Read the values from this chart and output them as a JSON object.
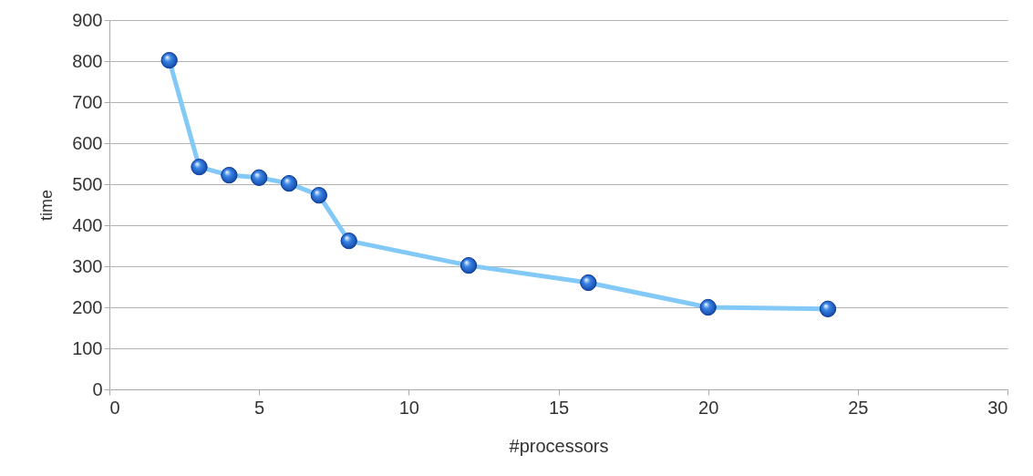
{
  "chart_data": {
    "type": "line",
    "xlabel": "#processors",
    "ylabel": "time",
    "x": [
      2,
      3,
      4,
      5,
      6,
      7,
      8,
      12,
      16,
      20,
      24
    ],
    "series": [
      {
        "color": "#83c9f7",
        "values": [
          802,
          542,
          522,
          516,
          502,
          473,
          362,
          302,
          260,
          200,
          196
        ]
      }
    ],
    "xlim": [
      0,
      30
    ],
    "xticks": [
      0,
      5,
      10,
      15,
      20,
      25,
      30
    ],
    "ylim": [
      0,
      900
    ],
    "yticks": [
      0,
      100,
      200,
      300,
      400,
      500,
      600,
      700,
      800,
      900
    ],
    "grid": "y",
    "marker": "circle",
    "line_style": "solid"
  }
}
